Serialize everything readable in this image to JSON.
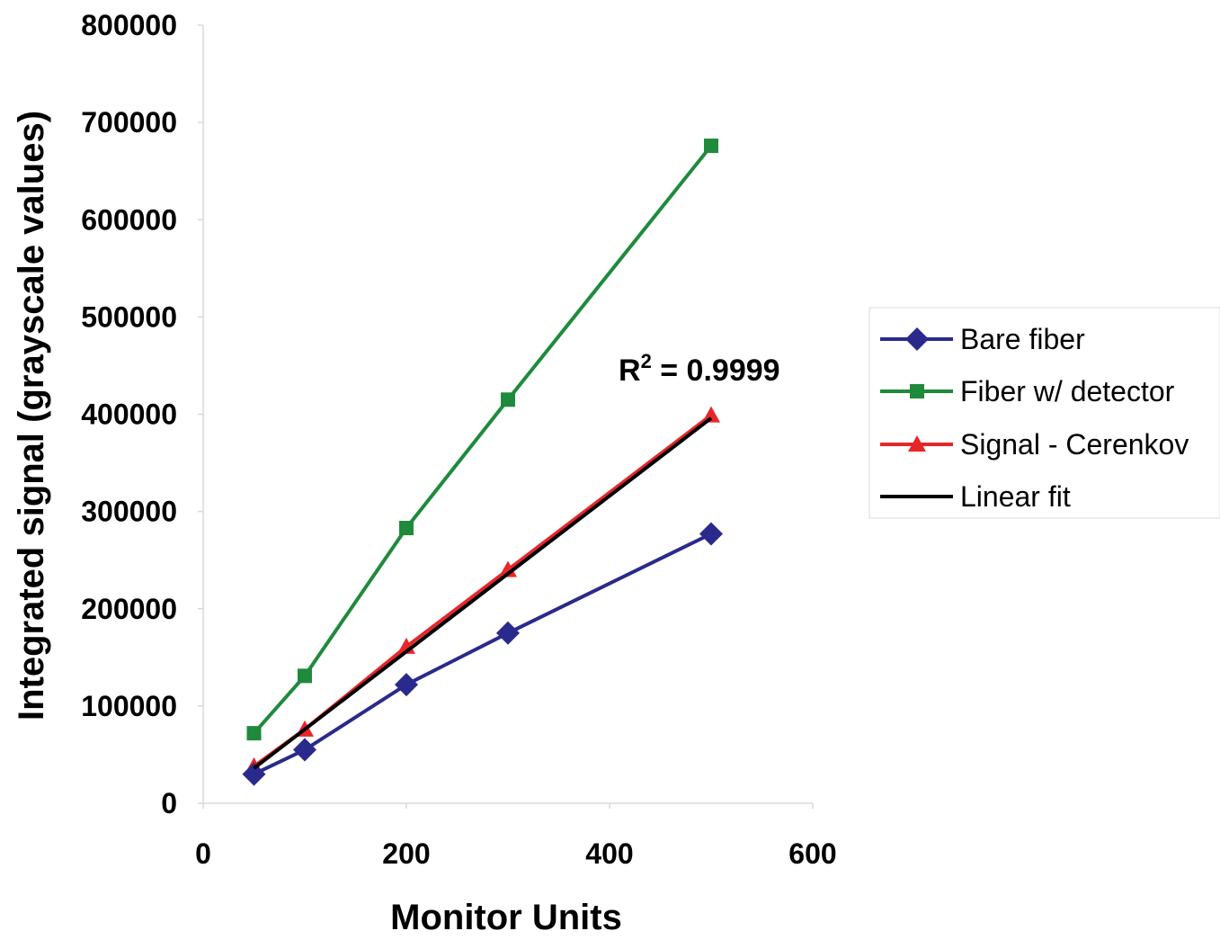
{
  "chart_data": {
    "type": "line",
    "xlabel": "Monitor Units",
    "ylabel": "Integrated signal (grayscale values)",
    "xlim": [
      0,
      600
    ],
    "ylim": [
      0,
      800000
    ],
    "xticks": [
      0,
      200,
      400,
      600
    ],
    "yticks": [
      0,
      100000,
      200000,
      300000,
      400000,
      500000,
      600000,
      700000,
      800000
    ],
    "grid": false,
    "legend_position": "right",
    "annotation": {
      "base": "R",
      "sup": "2",
      "rest": " = 0.9999"
    },
    "series": [
      {
        "name": "Bare fiber",
        "color": "#2a2a8c",
        "marker": "diamond",
        "x": [
          50,
          100,
          200,
          300,
          500
        ],
        "y": [
          30000,
          55000,
          122000,
          175000,
          277000
        ]
      },
      {
        "name": "Fiber w/ detector",
        "color": "#1f8a3c",
        "marker": "square",
        "x": [
          50,
          100,
          200,
          300,
          500
        ],
        "y": [
          72000,
          131000,
          283000,
          415000,
          676000
        ]
      },
      {
        "name": "Signal - Cerenkov",
        "color": "#e8262a",
        "marker": "triangle",
        "x": [
          50,
          100,
          200,
          300,
          500
        ],
        "y": [
          38000,
          76000,
          161000,
          240000,
          399000
        ]
      },
      {
        "name": "Linear fit",
        "color": "#000000",
        "marker": "none",
        "x": [
          50,
          500
        ],
        "y": [
          36000,
          396000
        ]
      }
    ]
  }
}
